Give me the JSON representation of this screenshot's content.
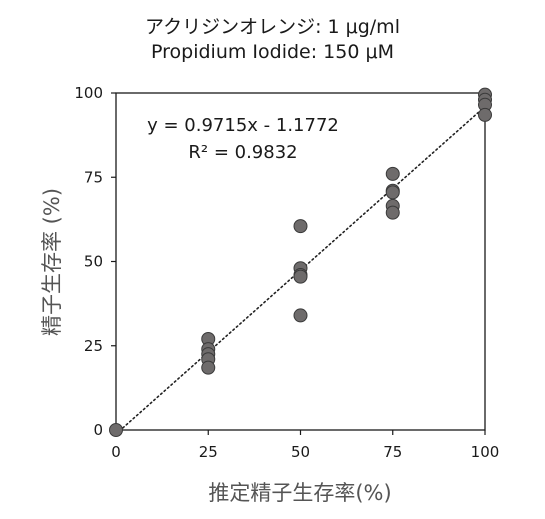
{
  "chart_data": {
    "type": "scatter",
    "title_line1": "アクリジンオレンジ: 1 μg/ml",
    "title_line2": "Propidium Iodide: 150 μM",
    "xlabel": "推定精子生存率(%)",
    "ylabel": "精子生存率 (%)",
    "xlim": [
      0,
      100
    ],
    "ylim": [
      0,
      100
    ],
    "xticks": [
      "0",
      "25",
      "50",
      "75",
      "100"
    ],
    "yticks": [
      "0",
      "25",
      "50",
      "75",
      "100"
    ],
    "grid": false,
    "equation": "y = 0.9715x - 1.1772",
    "r_squared": "R² = 0.9832",
    "trendline": {
      "slope": 0.9715,
      "intercept": -1.1772,
      "style": "dotted"
    },
    "colors": {
      "marker_fill": "#6e6b6b",
      "marker_edge": "#3a3a3a",
      "axis": "#1a1a1a"
    },
    "points": [
      {
        "x": 0,
        "y": 0
      },
      {
        "x": 25,
        "y": 27
      },
      {
        "x": 25,
        "y": 24
      },
      {
        "x": 25,
        "y": 22.5
      },
      {
        "x": 25,
        "y": 21
      },
      {
        "x": 25,
        "y": 18.5
      },
      {
        "x": 50,
        "y": 60.5
      },
      {
        "x": 50,
        "y": 48
      },
      {
        "x": 50,
        "y": 46
      },
      {
        "x": 50,
        "y": 45.5
      },
      {
        "x": 50,
        "y": 34
      },
      {
        "x": 75,
        "y": 76
      },
      {
        "x": 75,
        "y": 71
      },
      {
        "x": 75,
        "y": 70.5
      },
      {
        "x": 75,
        "y": 66.5
      },
      {
        "x": 75,
        "y": 64.5
      },
      {
        "x": 100,
        "y": 99.5
      },
      {
        "x": 100,
        "y": 98
      },
      {
        "x": 100,
        "y": 96.5
      },
      {
        "x": 100,
        "y": 93.5
      }
    ]
  }
}
